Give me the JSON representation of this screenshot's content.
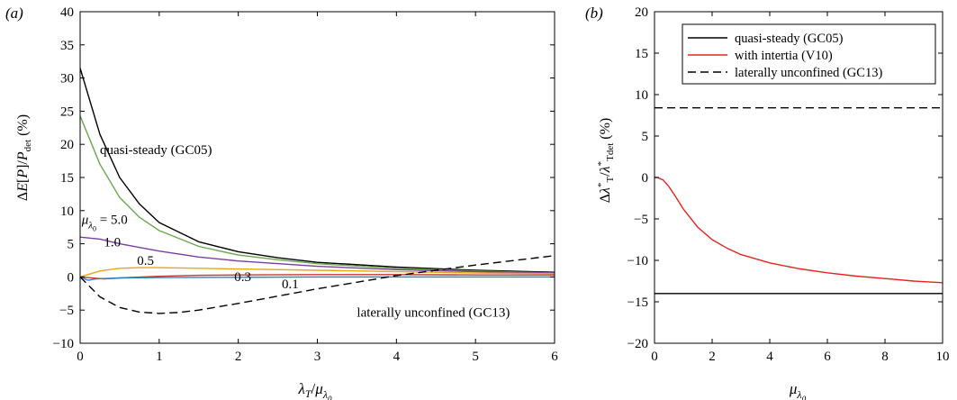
{
  "chart_data": [
    {
      "panel_tag": "(a)",
      "type": "line",
      "xlabel": "λT/μλ0",
      "ylabel": "ΔE[P]/Pdet (%)",
      "xlim": [
        0,
        6
      ],
      "ylim": [
        -10,
        40
      ],
      "xticks": [
        0,
        1,
        2,
        3,
        4,
        5,
        6
      ],
      "yticks": [
        -10,
        -5,
        0,
        5,
        10,
        15,
        20,
        25,
        30,
        35,
        40
      ],
      "grid": false,
      "series": [
        {
          "name": "quasi-steady (GC05)",
          "color": "#000000",
          "dash": "solid",
          "x": [
            0,
            0.25,
            0.5,
            0.75,
            1,
            1.5,
            2,
            2.5,
            3,
            4,
            5,
            6
          ],
          "y": [
            31.5,
            21.5,
            15.0,
            11.0,
            8.2,
            5.3,
            3.8,
            2.9,
            2.2,
            1.5,
            1.0,
            0.7
          ]
        },
        {
          "name": "5.0",
          "color": "#6aa84f",
          "dash": "solid",
          "x": [
            0,
            0.25,
            0.5,
            0.75,
            1,
            1.5,
            2,
            2.5,
            3,
            4,
            5,
            6
          ],
          "y": [
            24.3,
            17.0,
            12.0,
            9.0,
            7.0,
            4.6,
            3.3,
            2.6,
            2.0,
            1.3,
            0.9,
            0.6
          ]
        },
        {
          "name": "1.0",
          "color": "#7a3fa0",
          "dash": "solid",
          "x": [
            0,
            0.25,
            0.5,
            1,
            1.5,
            2,
            3,
            4,
            5,
            6
          ],
          "y": [
            6.0,
            5.7,
            5.0,
            3.9,
            3.0,
            2.4,
            1.6,
            1.1,
            0.8,
            0.6
          ]
        },
        {
          "name": "0.5",
          "color": "#e6a817",
          "dash": "solid",
          "x": [
            0,
            0.25,
            0.5,
            0.75,
            1,
            1.5,
            2,
            3,
            4,
            5,
            6
          ],
          "y": [
            0,
            0.9,
            1.3,
            1.4,
            1.4,
            1.3,
            1.2,
            1.0,
            0.8,
            0.6,
            0.5
          ]
        },
        {
          "name": "0.3",
          "color": "#c0392b",
          "dash": "solid",
          "x": [
            0,
            0.3,
            0.6,
            1,
            1.5,
            2,
            3,
            4,
            5,
            6
          ],
          "y": [
            0,
            -0.3,
            -0.1,
            0.1,
            0.25,
            0.3,
            0.35,
            0.35,
            0.3,
            0.3
          ]
        },
        {
          "name": "0.1",
          "color": "#2e7fc1",
          "dash": "solid",
          "x": [
            0,
            0.1,
            0.2,
            0.5,
            1,
            2,
            3,
            4,
            5,
            6
          ],
          "y": [
            0,
            -0.5,
            -0.3,
            -0.15,
            -0.1,
            -0.05,
            0,
            0,
            0,
            0
          ]
        },
        {
          "name": "laterally unconfined (GC13)",
          "color": "#000000",
          "dash": "dashed",
          "x": [
            0,
            0.1,
            0.25,
            0.5,
            0.75,
            1,
            1.25,
            1.5,
            2,
            2.5,
            3,
            3.5,
            4,
            4.5,
            5,
            5.5,
            6
          ],
          "y": [
            0,
            -1.2,
            -3.0,
            -4.6,
            -5.3,
            -5.5,
            -5.35,
            -5.0,
            -4.0,
            -2.9,
            -1.8,
            -0.8,
            0.2,
            1.0,
            1.8,
            2.5,
            3.2
          ]
        }
      ],
      "annotations": [
        {
          "text": "quasi-steady (GC05)",
          "x": 0.25,
          "y": 18.5
        },
        {
          "text": "μλ0 = 5.0",
          "x": 0.02,
          "y": 8.0
        },
        {
          "text": "1.0",
          "x": 0.3,
          "y": 4.6
        },
        {
          "text": "0.5",
          "x": 0.72,
          "y": 1.8
        },
        {
          "text": "0.3",
          "x": 1.95,
          "y": -0.6
        },
        {
          "text": "0.1",
          "x": 2.55,
          "y": -1.7
        },
        {
          "text": "laterally unconfined (GC13)",
          "x": 3.5,
          "y": -6.0
        }
      ]
    },
    {
      "panel_tag": "(b)",
      "type": "line",
      "xlabel": "μλ0",
      "ylabel": "Δλ*T/λ*Tdet (%)",
      "xlim": [
        0,
        10
      ],
      "ylim": [
        -20,
        20
      ],
      "xticks": [
        0,
        2,
        4,
        6,
        8,
        10
      ],
      "yticks": [
        -20,
        -15,
        -10,
        -5,
        0,
        5,
        10,
        15,
        20
      ],
      "grid": false,
      "legend_position": "top-right",
      "series": [
        {
          "name": "quasi-steady (GC05)",
          "color": "#000000",
          "dash": "solid",
          "x": [
            0,
            10
          ],
          "y": [
            -14,
            -14
          ]
        },
        {
          "name": "with intertia (V10)",
          "color": "#e8231f",
          "dash": "solid",
          "x": [
            0,
            0.1,
            0.3,
            0.5,
            0.75,
            1,
            1.5,
            2,
            2.5,
            3,
            4,
            5,
            6,
            7,
            8,
            9,
            10
          ],
          "y": [
            0,
            0,
            -0.3,
            -1.1,
            -2.4,
            -3.8,
            -6.0,
            -7.5,
            -8.5,
            -9.3,
            -10.3,
            -11.0,
            -11.5,
            -11.9,
            -12.2,
            -12.5,
            -12.7
          ]
        },
        {
          "name": "laterally unconfined (GC13)",
          "color": "#000000",
          "dash": "dashed",
          "x": [
            0,
            10
          ],
          "y": [
            8.4,
            8.4
          ]
        }
      ]
    }
  ]
}
